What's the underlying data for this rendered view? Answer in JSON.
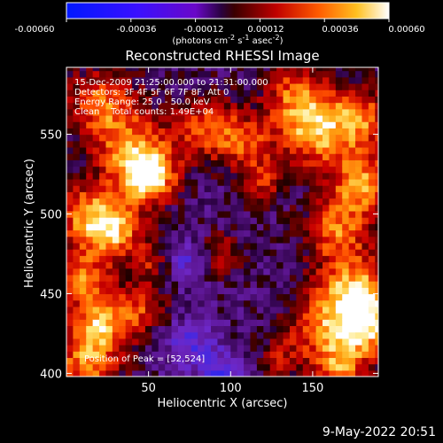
{
  "chart_data": {
    "type": "heatmap",
    "title": "Reconstructed RHESSI Image",
    "xlabel": "Heliocentric X (arcsec)",
    "ylabel": "Heliocentric Y (arcsec)",
    "xlim": [
      0,
      190
    ],
    "ylim": [
      398,
      592
    ],
    "xticks": [
      50,
      100,
      150
    ],
    "yticks": [
      400,
      450,
      500,
      550
    ],
    "colorbar": {
      "ticks": [
        "-0.00060",
        "-0.00036",
        "-0.00012",
        "0.00012",
        "0.00036",
        "0.00060"
      ],
      "range": [
        -0.0006,
        0.0006
      ],
      "label_main": "(photons cm",
      "label_sup1": "-2",
      "label_mid1": " s",
      "label_sup2": "-1",
      "label_mid2": " asec",
      "label_sup3": "-2",
      "label_end": ")"
    },
    "annotations": [
      "15-Dec-2009 21:25:00.000 to 21:31:00.000",
      "Detectors: 3F 4F 5F 6F 7F 8F, Att 0",
      "Energy Range: 25.0 - 50.0 keV",
      "Clean    Total counts: 1.49E+04"
    ],
    "peak_label": "Position of Peak = [52,524]",
    "peak": [
      52,
      524
    ],
    "features": [
      {
        "x": 50,
        "y": 524,
        "intensity": 1.0,
        "radius": 12
      },
      {
        "x": 40,
        "y": 540,
        "intensity": 0.7,
        "radius": 16
      },
      {
        "x": 22,
        "y": 570,
        "intensity": 0.7,
        "radius": 15
      },
      {
        "x": 85,
        "y": 555,
        "intensity": 0.65,
        "radius": 14
      },
      {
        "x": 110,
        "y": 545,
        "intensity": 0.55,
        "radius": 12
      },
      {
        "x": 150,
        "y": 550,
        "intensity": 0.8,
        "radius": 14
      },
      {
        "x": 140,
        "y": 575,
        "intensity": 0.7,
        "radius": 14
      },
      {
        "x": 178,
        "y": 560,
        "intensity": 0.75,
        "radius": 14
      },
      {
        "x": 180,
        "y": 520,
        "intensity": 0.8,
        "radius": 14
      },
      {
        "x": 165,
        "y": 490,
        "intensity": 0.7,
        "radius": 14
      },
      {
        "x": 12,
        "y": 500,
        "intensity": 0.75,
        "radius": 14
      },
      {
        "x": 30,
        "y": 490,
        "intensity": 0.8,
        "radius": 12
      },
      {
        "x": 10,
        "y": 460,
        "intensity": 0.75,
        "radius": 12
      },
      {
        "x": 20,
        "y": 430,
        "intensity": 0.8,
        "radius": 12
      },
      {
        "x": 45,
        "y": 440,
        "intensity": 0.55,
        "radius": 12
      },
      {
        "x": 12,
        "y": 405,
        "intensity": 0.75,
        "radius": 14
      },
      {
        "x": 55,
        "y": 470,
        "intensity": 0.5,
        "radius": 10
      },
      {
        "x": 120,
        "y": 520,
        "intensity": 0.45,
        "radius": 10
      },
      {
        "x": 95,
        "y": 475,
        "intensity": 0.4,
        "radius": 10
      },
      {
        "x": 175,
        "y": 450,
        "intensity": 0.95,
        "radius": 16
      },
      {
        "x": 182,
        "y": 430,
        "intensity": 0.85,
        "radius": 14
      },
      {
        "x": 165,
        "y": 405,
        "intensity": 0.75,
        "radius": 12
      },
      {
        "x": 150,
        "y": 430,
        "intensity": 0.5,
        "radius": 12
      },
      {
        "x": 130,
        "y": 410,
        "intensity": 0.4,
        "radius": 10
      },
      {
        "x": 75,
        "y": 420,
        "intensity": -0.4,
        "radius": 12
      },
      {
        "x": 70,
        "y": 470,
        "intensity": -0.5,
        "radius": 10
      },
      {
        "x": 95,
        "y": 400,
        "intensity": -0.45,
        "radius": 10
      }
    ]
  },
  "timestamp": "9-May-2022 20:51"
}
